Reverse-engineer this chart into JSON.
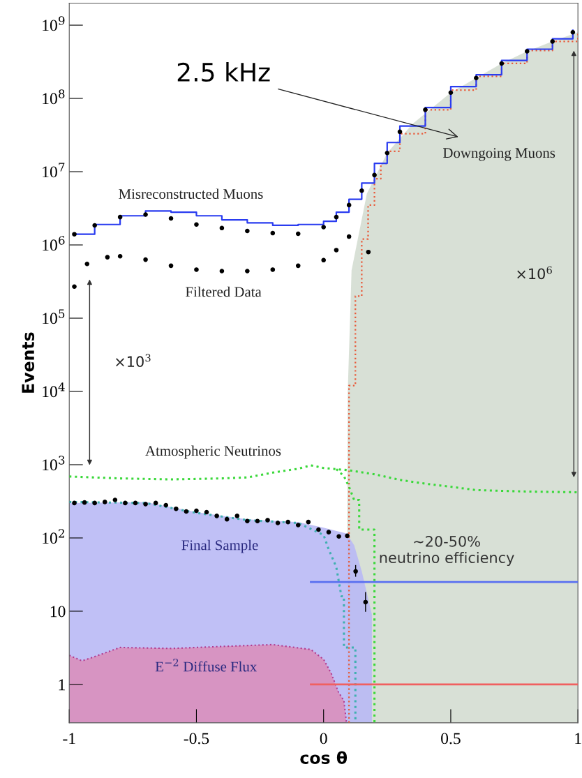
{
  "chart_data": {
    "type": "line",
    "xlabel": "cos θ",
    "ylabel": "Events",
    "log": "y",
    "grid": false,
    "xlim": [
      -1,
      1
    ],
    "xticks": [
      -1,
      -0.5,
      0,
      0.5,
      1
    ],
    "ylim": [
      0.3,
      2000000000
    ],
    "yticks": [
      1,
      10,
      {
        "value": 100,
        "label": "10$^{2}$"
      },
      {
        "value": 1000,
        "label": "10$^{3}$"
      },
      {
        "value": 10000,
        "label": "10$^{4}$"
      },
      {
        "value": 100000,
        "label": "10$^{5}$"
      },
      {
        "value": 1000000,
        "label": "10$^{6}$"
      },
      {
        "value": 10000000,
        "label": "10$^{7}$"
      },
      {
        "value": 100000000,
        "label": "10$^{8}$"
      },
      {
        "value": 1000000000,
        "label": "10$^{9}$"
      }
    ],
    "series": [
      {
        "type": "area",
        "color": "#d4ddd1",
        "x": [
          0.09,
          0.095,
          0.11,
          0.17,
          0.25,
          0.35,
          0.5,
          0.6,
          0.7,
          0.8,
          0.9,
          1.0
        ],
        "values": [
          0.3,
          10000,
          450000,
          5000000,
          18000000,
          45000000,
          120000000,
          190000000,
          300000000,
          440000000,
          600000000,
          800000000
        ]
      },
      {
        "type": "area",
        "color": "#b9b9f5",
        "x": [
          -1,
          -0.7,
          -0.5,
          -0.3,
          -0.1,
          0,
          0.09,
          0.12,
          0.15,
          0.19,
          0.19
        ],
        "values": [
          300,
          310,
          225,
          180,
          165,
          138,
          115,
          80,
          35,
          9,
          0.3
        ]
      },
      {
        "type": "area",
        "color": "#d98fbd",
        "line_style": "dotted",
        "x": [
          -1,
          -0.95,
          -0.9,
          -0.8,
          -0.6,
          -0.4,
          -0.2,
          -0.05,
          0.0,
          0.03,
          0.058,
          0.08,
          0.09
        ],
        "values": [
          2.5,
          2.1,
          2.4,
          3.2,
          3.1,
          3.3,
          3.5,
          3.0,
          2.2,
          1.42,
          0.79,
          0.6,
          0.3
        ]
      },
      {
        "type": "step",
        "color": "#e85a3a",
        "line_style": "dotted",
        "x": [
          0.1,
          0.1,
          0.125,
          0.15,
          0.175,
          0.2,
          0.225,
          0.25,
          0.3,
          0.4,
          0.5,
          0.6,
          0.7,
          0.8,
          0.9,
          1.0
        ],
        "values": [
          0.3,
          12000,
          200000,
          1200000,
          3500000,
          8000000,
          13000000,
          19000000,
          33000000,
          70000000,
          130000000,
          200000000,
          300000000,
          450000000,
          600000000,
          820000000
        ]
      },
      {
        "color": "#3ad83a",
        "line_style": "dotted",
        "x": [
          -1,
          -0.8,
          -0.6,
          -0.4,
          -0.3,
          -0.2,
          -0.1,
          -0.05,
          0,
          0.1,
          0.2,
          0.3,
          0.4,
          0.5,
          0.6,
          0.8,
          1.0
        ],
        "values": [
          690,
          650,
          630,
          650,
          670,
          780,
          880,
          980,
          900,
          840,
          740,
          620,
          550,
          500,
          450,
          430,
          420
        ]
      },
      {
        "type": "line",
        "color": "#3ad83a",
        "line_style": "dotted",
        "x": [
          0.05,
          0.08,
          0.1,
          0.12,
          0.14,
          0.14,
          0.2,
          0.2
        ],
        "values": [
          870,
          700,
          500,
          330,
          330,
          130,
          130,
          0.3
        ]
      },
      {
        "type": "line",
        "color": "#40b0b0",
        "line_style": "dotted",
        "x": [
          -1,
          -0.7,
          -0.5,
          -0.3,
          -0.1,
          0,
          0.02,
          0.05,
          0.07,
          0.08,
          0.08,
          0.125,
          0.125
        ],
        "values": [
          310,
          300,
          220,
          175,
          160,
          110,
          70,
          40,
          16,
          16,
          3.2,
          3.2,
          0.3
        ]
      },
      {
        "type": "step",
        "color": "#2a3cf0",
        "line_style": "solid",
        "x": [
          -0.98,
          -0.9,
          -0.8,
          -0.7,
          -0.6,
          -0.5,
          -0.4,
          -0.3,
          -0.2,
          -0.1,
          0,
          0.05,
          0.1,
          0.15,
          0.2,
          0.25,
          0.3,
          0.4,
          0.5,
          0.6,
          0.7,
          0.8,
          0.9,
          0.98
        ],
        "values": [
          1400000,
          1900000,
          2500000,
          2900000,
          2800000,
          2500000,
          2200000,
          2000000,
          1850000,
          1900000,
          2100000,
          2800000,
          4200000,
          7000000,
          13000000,
          25000000,
          42000000,
          75000000,
          145000000,
          210000000,
          330000000,
          470000000,
          650000000,
          850000000
        ]
      },
      {
        "type": "scatter",
        "color": "#000000",
        "marker": "circle",
        "x": [
          -0.98,
          -0.9,
          -0.8,
          -0.7,
          -0.6,
          -0.5,
          -0.4,
          -0.3,
          -0.2,
          -0.1,
          0,
          0.05,
          0.1,
          0.15,
          0.2,
          0.25,
          0.3,
          0.4,
          0.5,
          0.6,
          0.7,
          0.8,
          0.9,
          0.98
        ],
        "values": [
          1400000,
          1850000,
          2400000,
          2600000,
          2300000,
          1900000,
          1700000,
          1550000,
          1450000,
          1420000,
          1750000,
          2400000,
          3500000,
          5500000,
          9000000,
          18000000,
          35000000,
          70000000,
          120000000,
          190000000,
          300000000,
          440000000,
          600000000,
          800000000
        ]
      },
      {
        "type": "scatter",
        "color": "#000000",
        "marker": "circle",
        "x": [
          -0.98,
          -0.93,
          -0.85,
          -0.8,
          -0.7,
          -0.6,
          -0.5,
          -0.4,
          -0.3,
          -0.2,
          -0.1,
          0,
          0.05,
          0.1,
          0.176
        ],
        "values": [
          270000,
          550000,
          680000,
          700000,
          630000,
          520000,
          460000,
          440000,
          440000,
          460000,
          520000,
          620000,
          850000,
          1300000,
          800000
        ]
      },
      {
        "type": "scatter",
        "color": "#000000",
        "marker": "circle",
        "x": [
          -0.98,
          -0.94,
          -0.9,
          -0.86,
          -0.82,
          -0.78,
          -0.74,
          -0.7,
          -0.66,
          -0.62,
          -0.58,
          -0.54,
          -0.5,
          -0.46,
          -0.42,
          -0.38,
          -0.34,
          -0.3,
          -0.26,
          -0.22,
          -0.18,
          -0.14,
          -0.1,
          -0.06,
          -0.02,
          0.02,
          0.06,
          0.093,
          0.126,
          0.165
        ],
        "values": [
          300,
          305,
          300,
          310,
          330,
          300,
          300,
          290,
          300,
          280,
          250,
          230,
          235,
          225,
          200,
          180,
          200,
          170,
          170,
          175,
          160,
          165,
          150,
          165,
          130,
          120,
          105,
          107,
          35,
          13.3
        ],
        "errors": [
          null,
          null,
          null,
          null,
          null,
          null,
          null,
          null,
          null,
          null,
          null,
          null,
          null,
          null,
          null,
          null,
          null,
          null,
          null,
          null,
          null,
          null,
          null,
          null,
          null,
          null,
          null,
          null,
          [
            30,
            42
          ],
          [
            10,
            18
          ]
        ]
      },
      {
        "color": "#5a70f0",
        "line_style": "solid",
        "x": [
          -0.05,
          1
        ],
        "values": [
          25,
          25
        ]
      },
      {
        "color": "#f06060",
        "line_style": "solid",
        "x": [
          -0.05,
          1
        ],
        "values": [
          1,
          1
        ]
      }
    ],
    "annotations": [
      "2.5 kHz",
      "Downgoing Muons",
      "Misreconstructed Muons",
      "Filtered Data",
      "×10$^{3}$",
      "×10$^{6}$",
      "Atmospheric Neutrinos",
      "Final Sample",
      "~20-50%\nneutrino efficiency",
      "E$^{−2}$ Diffuse Flux"
    ]
  }
}
